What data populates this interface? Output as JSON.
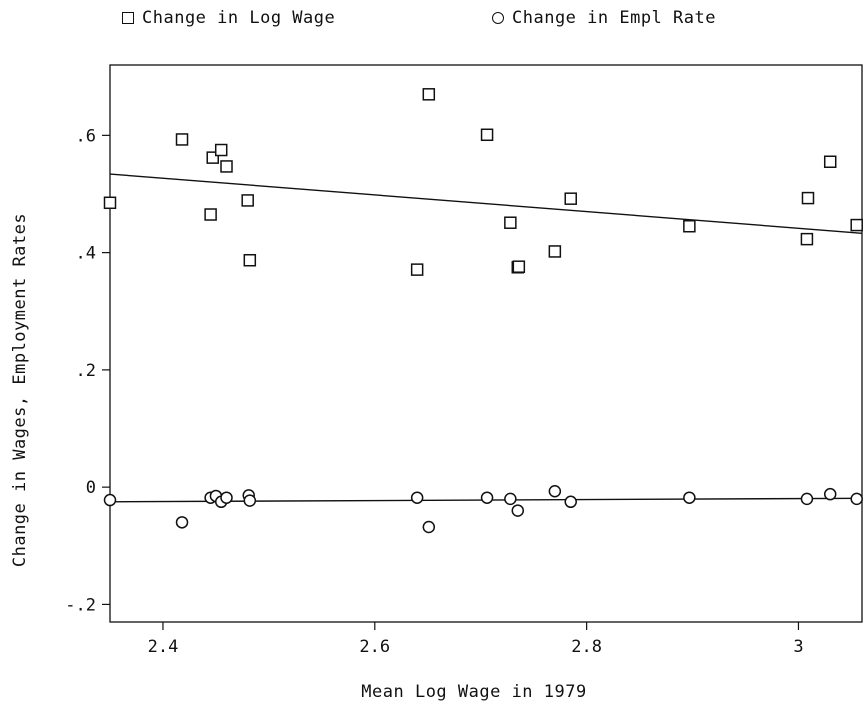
{
  "chart_data": {
    "type": "scatter",
    "title": "",
    "xlabel": "Mean Log Wage in 1979",
    "ylabel": "Change in Wages, Employment Rates",
    "xlim": [
      2.35,
      3.06
    ],
    "ylim": [
      -0.23,
      0.72
    ],
    "xticks": [
      2.4,
      2.6,
      2.8,
      3.0
    ],
    "xtick_labels": [
      "2.4",
      "2.6",
      "2.8",
      "3"
    ],
    "yticks": [
      -0.2,
      0,
      0.2,
      0.4,
      0.6
    ],
    "ytick_labels": [
      "-.2",
      "0",
      ".2",
      ".4",
      ".6"
    ],
    "grid": false,
    "legend": "top",
    "series": [
      {
        "name": "Change in Log Wage",
        "marker": "square",
        "x": [
          2.35,
          2.418,
          2.445,
          2.447,
          2.455,
          2.46,
          2.48,
          2.482,
          2.64,
          2.651,
          2.706,
          2.728,
          2.735,
          2.736,
          2.77,
          2.785,
          2.897,
          3.008,
          3.009,
          3.03,
          3.055
        ],
        "y": [
          0.485,
          0.593,
          0.465,
          0.562,
          0.575,
          0.547,
          0.489,
          0.387,
          0.371,
          0.67,
          0.601,
          0.451,
          0.375,
          0.376,
          0.402,
          0.492,
          0.445,
          0.423,
          0.493,
          0.555,
          0.447
        ],
        "fit": {
          "x": [
            2.35,
            3.06
          ],
          "y": [
            0.534,
            0.433
          ]
        }
      },
      {
        "name": "Change in Empl Rate",
        "marker": "circle",
        "x": [
          2.35,
          2.418,
          2.445,
          2.45,
          2.455,
          2.46,
          2.481,
          2.482,
          2.64,
          2.651,
          2.706,
          2.728,
          2.735,
          2.77,
          2.785,
          2.897,
          3.008,
          3.03,
          3.055
        ],
        "y": [
          -0.022,
          -0.06,
          -0.018,
          -0.015,
          -0.025,
          -0.018,
          -0.014,
          -0.023,
          -0.018,
          -0.068,
          -0.018,
          -0.02,
          -0.04,
          -0.007,
          -0.025,
          -0.018,
          -0.02,
          -0.012,
          -0.02
        ],
        "fit": {
          "x": [
            2.35,
            3.06
          ],
          "y": [
            -0.025,
            -0.019
          ]
        }
      }
    ]
  },
  "legend": {
    "items": [
      {
        "label": "Change in Log Wage",
        "marker": "square"
      },
      {
        "label": "Change in Empl Rate",
        "marker": "circle"
      }
    ]
  },
  "colors": {
    "ink": "#111111",
    "background": "#ffffff"
  }
}
